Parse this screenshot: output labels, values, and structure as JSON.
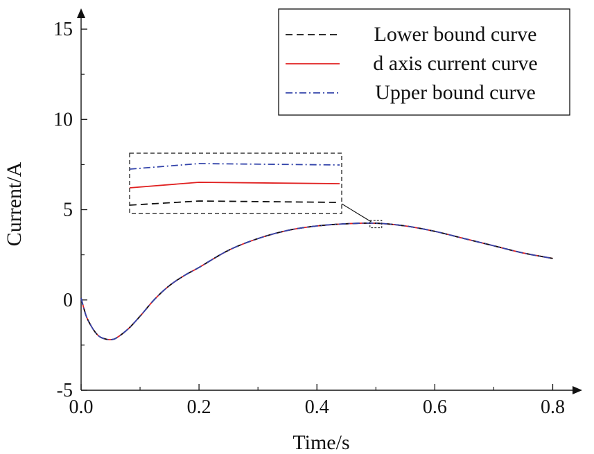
{
  "chart_data": {
    "type": "line",
    "xlabel": "Time/s",
    "ylabel": "Current/A",
    "xlim": [
      0,
      0.85
    ],
    "ylim": [
      -5,
      16
    ],
    "x_ticks": [
      0.0,
      0.2,
      0.4,
      0.6,
      0.8
    ],
    "x_tick_labels": [
      "0.0",
      "0.2",
      "0.4",
      "0.6",
      "0.8"
    ],
    "y_ticks": [
      -5,
      0,
      5,
      10,
      15
    ],
    "y_tick_labels": [
      "-5",
      "0",
      "5",
      "10",
      "15"
    ],
    "grid": false,
    "legend_position": "top-right",
    "x": [
      0.0,
      0.005,
      0.01,
      0.02,
      0.03,
      0.04,
      0.05,
      0.06,
      0.08,
      0.1,
      0.125,
      0.15,
      0.175,
      0.2,
      0.25,
      0.3,
      0.35,
      0.4,
      0.45,
      0.5,
      0.55,
      0.6,
      0.65,
      0.7,
      0.75,
      0.8
    ],
    "series": [
      {
        "name": "Lower bound curve",
        "color": "#111111",
        "dash": "dashed",
        "values": [
          0.1,
          -0.5,
          -1.0,
          -1.6,
          -2.0,
          -2.15,
          -2.2,
          -2.1,
          -1.6,
          -0.9,
          0.05,
          0.8,
          1.35,
          1.8,
          2.75,
          3.4,
          3.85,
          4.1,
          4.22,
          4.25,
          4.1,
          3.8,
          3.4,
          3.0,
          2.6,
          2.3
        ]
      },
      {
        "name": "d axis current curve",
        "color": "#e02020",
        "dash": "solid",
        "values": [
          0.1,
          -0.5,
          -1.0,
          -1.6,
          -2.0,
          -2.15,
          -2.2,
          -2.1,
          -1.6,
          -0.9,
          0.05,
          0.8,
          1.35,
          1.8,
          2.75,
          3.4,
          3.85,
          4.1,
          4.22,
          4.25,
          4.1,
          3.8,
          3.4,
          3.0,
          2.6,
          2.3
        ]
      },
      {
        "name": "Upper bound curve",
        "color": "#3344aa",
        "dash": "dash-dot",
        "values": [
          0.1,
          -0.5,
          -1.0,
          -1.6,
          -2.0,
          -2.15,
          -2.2,
          -2.1,
          -1.6,
          -0.9,
          0.05,
          0.8,
          1.35,
          1.8,
          2.75,
          3.4,
          3.85,
          4.1,
          4.22,
          4.25,
          4.1,
          3.8,
          3.4,
          3.0,
          2.6,
          2.3
        ]
      }
    ],
    "inset": {
      "zoom_x": [
        0.49,
        0.51
      ],
      "zoom_y": [
        4.0,
        4.4
      ]
    }
  }
}
